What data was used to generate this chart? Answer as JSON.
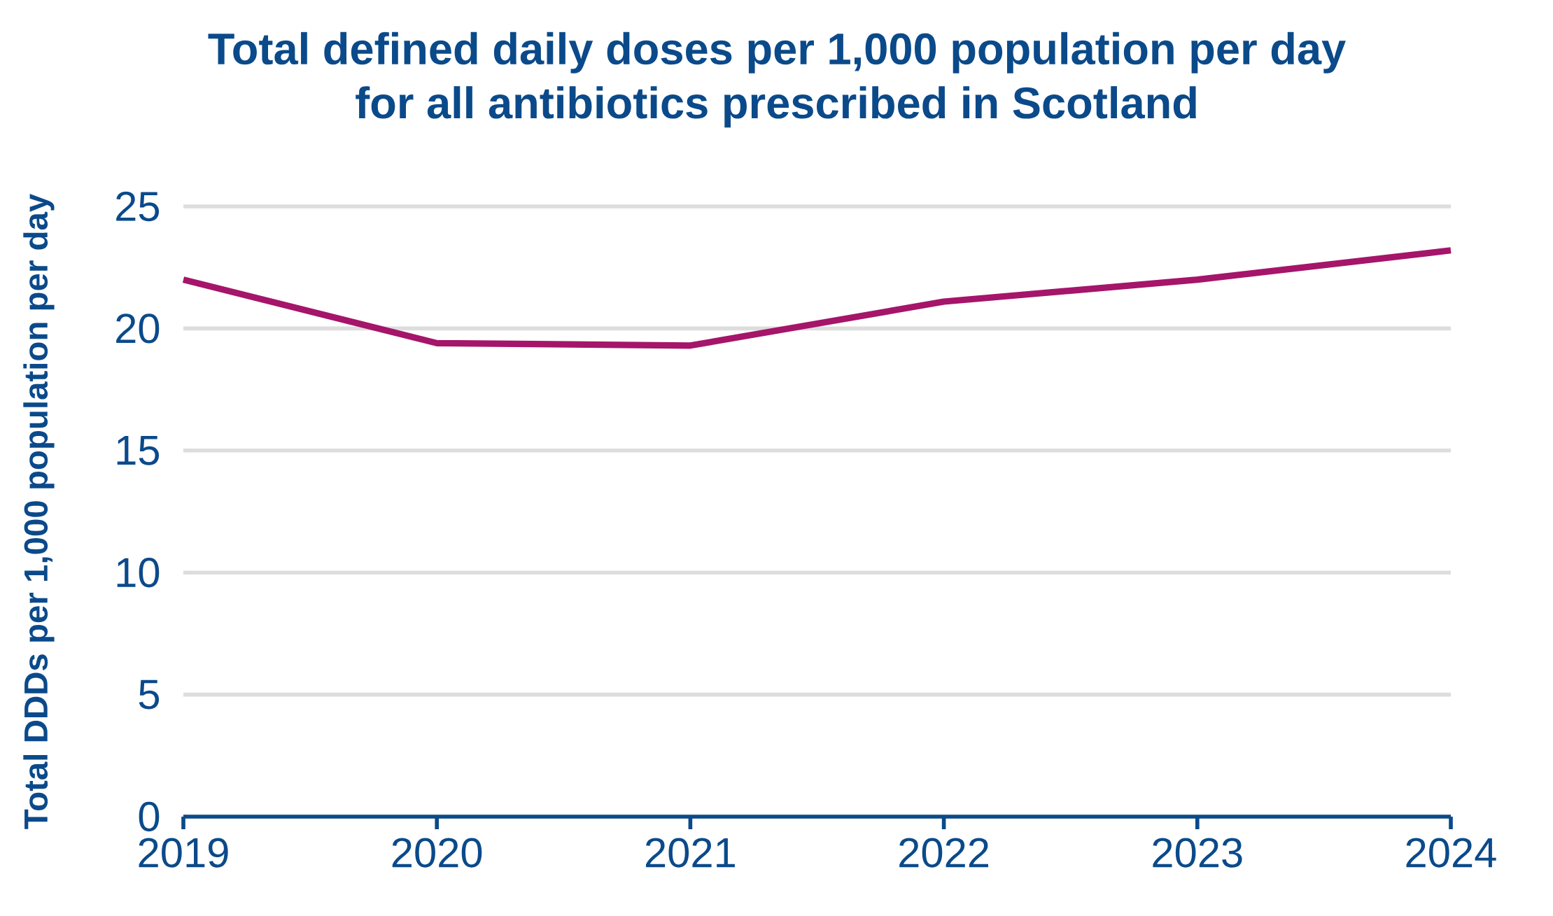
{
  "chart_data": {
    "type": "line",
    "title": "Total defined daily doses per 1,000 population per day\nfor all antibiotics prescribed in Scotland",
    "ylabel": "Total DDDs per 1,000 population per day",
    "x": [
      2019,
      2020,
      2021,
      2022,
      2023,
      2024
    ],
    "series": [
      {
        "color": "#a5156a",
        "values": [
          22.0,
          19.4,
          19.3,
          21.1,
          22.0,
          23.2
        ]
      }
    ],
    "xlim": [
      2019,
      2024
    ],
    "xticks": [
      2019,
      2020,
      2021,
      2022,
      2023,
      2024
    ],
    "ylim": [
      0,
      25
    ],
    "yticks": [
      0,
      5,
      10,
      15,
      20,
      25
    ],
    "grid": "y",
    "marker": "none",
    "line_style": "solid"
  }
}
